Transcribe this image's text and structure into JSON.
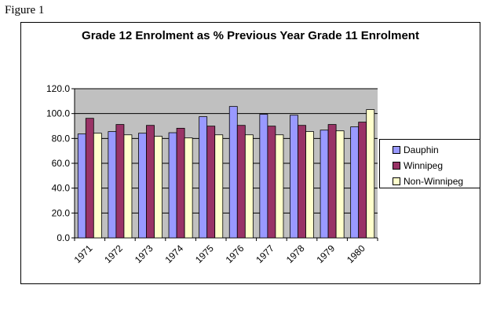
{
  "figure_label": "Figure 1",
  "chart_data": {
    "type": "bar",
    "title": "Grade 12 Enrolment as % Previous Year Grade 11 Enrolment",
    "xlabel": "",
    "ylabel": "",
    "ylim": [
      0,
      120
    ],
    "yticks": [
      "0.0",
      "20.0",
      "40.0",
      "60.0",
      "80.0",
      "100.0",
      "120.0"
    ],
    "grid": true,
    "legend_position": "right",
    "categories": [
      "1971",
      "1972",
      "1973",
      "1974",
      "1975",
      "1976",
      "1977",
      "1978",
      "1979",
      "1980"
    ],
    "series": [
      {
        "name": "Dauphin",
        "color": "#9999ff",
        "values": [
          83.6,
          85.5,
          84.2,
          84.6,
          97.5,
          105.7,
          99.4,
          98.7,
          86.7,
          89.3
        ]
      },
      {
        "name": "Winnipeg",
        "color": "#993366",
        "values": [
          96.2,
          91.2,
          90.5,
          88.2,
          89.9,
          90.5,
          89.9,
          90.5,
          91.2,
          93.1
        ]
      },
      {
        "name": "Non-Winnipeg",
        "color": "#ffffcc",
        "values": [
          84.2,
          82.9,
          81.7,
          80.4,
          82.9,
          82.9,
          82.9,
          85.5,
          86.1,
          103.2
        ]
      }
    ],
    "plot_background": "#c0c0c0"
  }
}
